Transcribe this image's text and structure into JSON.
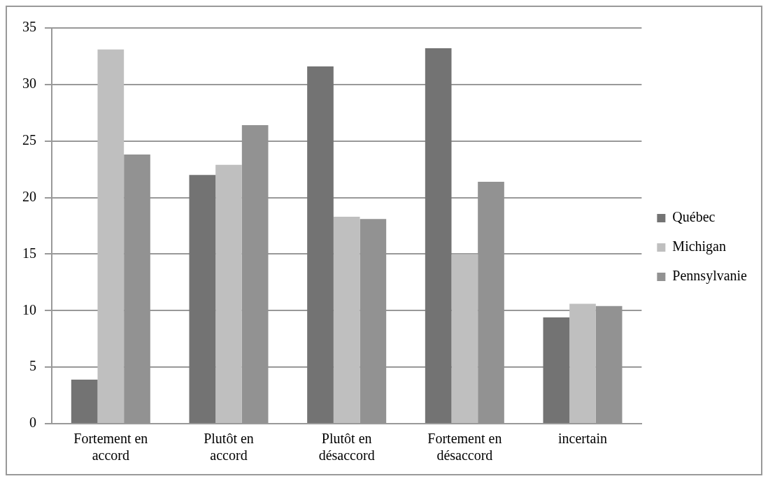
{
  "chart_data": {
    "type": "bar",
    "categories": [
      "Fortement en accord",
      "Plutôt en accord",
      "Plutôt en désaccord",
      "Fortement en désaccord",
      "incertain"
    ],
    "series": [
      {
        "name": "Québec",
        "color": "#737373",
        "values": [
          3.9,
          22.0,
          31.6,
          33.2,
          9.4
        ]
      },
      {
        "name": "Michigan",
        "color": "#bfbfbf",
        "values": [
          33.1,
          22.9,
          18.3,
          15.0,
          10.6
        ]
      },
      {
        "name": "Pennsylvanie",
        "color": "#929292",
        "values": [
          23.8,
          26.4,
          18.1,
          21.4,
          10.4
        ]
      }
    ],
    "ylim": [
      0,
      35
    ],
    "yticks": [
      0,
      5,
      10,
      15,
      20,
      25,
      30,
      35
    ],
    "grid": "y",
    "legend": "right"
  }
}
